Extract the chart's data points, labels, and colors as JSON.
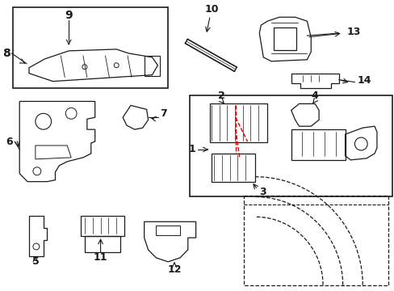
{
  "bg_color": "#ffffff",
  "line_color": "#1a1a1a",
  "red_color": "#dd0000",
  "fig_width": 4.89,
  "fig_height": 3.6,
  "dpi": 100
}
